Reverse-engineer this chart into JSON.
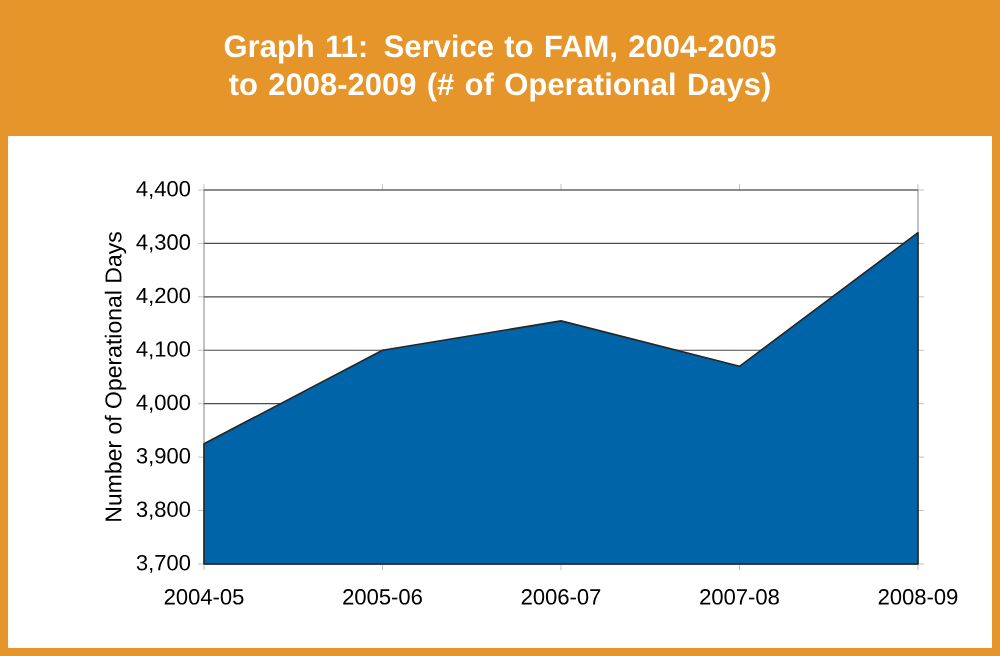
{
  "chart_data": {
    "type": "area",
    "title": "Graph 11: Service to FAM, 2004-2005 to 2008-2009 (# of Operational Days)",
    "ylabel": "Number of Operational Days",
    "categories": [
      "2004-05",
      "2005-06",
      "2006-07",
      "2007-08",
      "2008-09"
    ],
    "values": [
      3925,
      4100,
      4155,
      4070,
      4320
    ],
    "color": "#0064a8",
    "ylim": [
      3700,
      4400
    ],
    "yticks": [
      {
        "value": 3700,
        "label": "3,700"
      },
      {
        "value": 3800,
        "label": "3,800"
      },
      {
        "value": 3900,
        "label": "3,900"
      },
      {
        "value": 4000,
        "label": "4,000"
      },
      {
        "value": 4100,
        "label": "4,100"
      },
      {
        "value": 4200,
        "label": "4,200"
      },
      {
        "value": 4300,
        "label": "4,300"
      },
      {
        "value": 4400,
        "label": "4,400"
      }
    ],
    "grid": "y"
  }
}
